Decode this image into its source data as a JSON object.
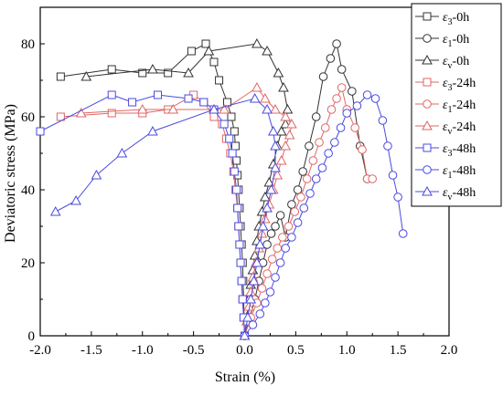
{
  "chart_data": {
    "type": "line",
    "xlabel": "Strain (%)",
    "ylabel": "Deviatoric stress (MPa)",
    "xlim": [
      -2.0,
      2.0
    ],
    "ylim": [
      0,
      90
    ],
    "x_ticks": [
      "-2.0",
      "-1.5",
      "-1.0",
      "-0.5",
      "0.0",
      "0.5",
      "1.0",
      "1.5",
      "2.0"
    ],
    "y_ticks": [
      "0",
      "20",
      "40",
      "60",
      "80"
    ],
    "grid": false,
    "legend_position": "top-right",
    "series": [
      {
        "name_sym": "ε",
        "name_sub": "3",
        "name_suffix": "-0h",
        "color": "#333333",
        "marker": "square",
        "x": [
          0.0,
          -0.005,
          -0.01,
          -0.015,
          -0.02,
          -0.03,
          -0.04,
          -0.05,
          -0.06,
          -0.07,
          -0.08,
          -0.09,
          -0.1,
          -0.13,
          -0.17,
          -0.25,
          -0.3,
          -0.38,
          -0.52,
          -0.75,
          -1.0,
          -1.3,
          -1.8
        ],
        "y": [
          0,
          5,
          10,
          15,
          20,
          25,
          30,
          35,
          40,
          44,
          48,
          52,
          56,
          60,
          64,
          70,
          75,
          80,
          78,
          72,
          72,
          73,
          71
        ]
      },
      {
        "name_sym": "ε",
        "name_sub": "1",
        "name_suffix": "-0h",
        "color": "#333333",
        "marker": "circle",
        "x": [
          0.0,
          0.05,
          0.1,
          0.14,
          0.18,
          0.22,
          0.26,
          0.3,
          0.35,
          0.4,
          0.46,
          0.52,
          0.57,
          0.63,
          0.7,
          0.77,
          0.84,
          0.9,
          0.95,
          1.05,
          1.13,
          1.2
        ],
        "y": [
          0,
          5,
          10,
          15,
          20,
          25,
          28,
          30,
          33,
          27,
          36,
          40,
          45,
          52,
          60,
          71,
          76,
          80,
          73,
          67,
          52,
          43
        ]
      },
      {
        "name_sym": "ε",
        "name_sub": "v",
        "name_suffix": "-0h",
        "color": "#333333",
        "marker": "triangle",
        "x": [
          0.0,
          0.02,
          0.04,
          0.06,
          0.08,
          0.1,
          0.12,
          0.14,
          0.17,
          0.2,
          0.24,
          0.28,
          0.32,
          0.36,
          0.4,
          0.42,
          0.38,
          0.33,
          0.22,
          0.12,
          -0.35,
          -0.55,
          -0.9,
          -1.55
        ],
        "y": [
          0,
          5,
          10,
          14,
          18,
          22,
          26,
          30,
          34,
          38,
          42,
          47,
          52,
          56,
          58,
          62,
          68,
          72,
          78,
          80,
          78,
          72,
          73,
          71
        ]
      },
      {
        "name_sym": "ε",
        "name_sub": "3",
        "name_suffix": "-24h",
        "color": "#e06666",
        "marker": "square",
        "x": [
          0.0,
          -0.01,
          -0.02,
          -0.03,
          -0.04,
          -0.05,
          -0.06,
          -0.07,
          -0.09,
          -0.11,
          -0.14,
          -0.18,
          -0.22,
          -0.3,
          -0.4,
          -0.5,
          -0.75,
          -1.0,
          -1.3,
          -1.8
        ],
        "y": [
          0,
          5,
          10,
          15,
          20,
          25,
          30,
          35,
          40,
          45,
          50,
          54,
          58,
          60,
          64,
          66,
          62,
          61,
          61,
          60
        ]
      },
      {
        "name_sym": "ε",
        "name_sub": "1",
        "name_suffix": "-24h",
        "color": "#e06666",
        "marker": "circle",
        "x": [
          0.0,
          0.06,
          0.12,
          0.17,
          0.22,
          0.27,
          0.32,
          0.37,
          0.43,
          0.49,
          0.55,
          0.61,
          0.67,
          0.73,
          0.79,
          0.85,
          0.9,
          0.95,
          1.0,
          1.08,
          1.15,
          1.2,
          1.25
        ],
        "y": [
          0,
          5,
          9,
          13,
          17,
          21,
          24,
          27,
          30,
          34,
          38,
          43,
          48,
          53,
          57,
          62,
          65,
          68,
          62,
          57,
          51,
          43,
          43
        ]
      },
      {
        "name_sym": "ε",
        "name_sub": "v",
        "name_suffix": "-24h",
        "color": "#e06666",
        "marker": "triangle",
        "x": [
          0.0,
          0.02,
          0.04,
          0.06,
          0.08,
          0.11,
          0.14,
          0.17,
          0.2,
          0.24,
          0.28,
          0.32,
          0.36,
          0.4,
          0.44,
          0.46,
          0.4,
          0.3,
          0.2,
          0.12,
          -0.2,
          -0.7,
          -1.0,
          -1.6
        ],
        "y": [
          0,
          4,
          8,
          12,
          16,
          20,
          24,
          28,
          32,
          36,
          40,
          44,
          48,
          52,
          55,
          58,
          60,
          62,
          65,
          68,
          62,
          62,
          62,
          61
        ]
      },
      {
        "name_sym": "ε",
        "name_sub": "3",
        "name_suffix": "-48h",
        "color": "#4a4ae0",
        "marker": "square",
        "x": [
          0.0,
          -0.01,
          -0.02,
          -0.03,
          -0.04,
          -0.05,
          -0.06,
          -0.07,
          -0.08,
          -0.1,
          -0.12,
          -0.15,
          -0.2,
          -0.3,
          -0.4,
          -0.55,
          -0.85,
          -1.1,
          -1.3,
          -2.0
        ],
        "y": [
          0,
          5,
          10,
          15,
          20,
          25,
          30,
          35,
          40,
          45,
          50,
          54,
          58,
          62,
          64,
          65,
          66,
          64,
          66,
          56
        ]
      },
      {
        "name_sym": "ε",
        "name_sub": "1",
        "name_suffix": "-48h",
        "color": "#4a4ae0",
        "marker": "circle",
        "x": [
          0.0,
          0.08,
          0.15,
          0.2,
          0.25,
          0.3,
          0.35,
          0.4,
          0.46,
          0.52,
          0.58,
          0.64,
          0.7,
          0.76,
          0.82,
          0.88,
          0.94,
          1.0,
          1.1,
          1.2,
          1.28,
          1.35,
          1.4,
          1.45,
          1.5,
          1.55
        ],
        "y": [
          0,
          3,
          6,
          9,
          12,
          16,
          20,
          24,
          27,
          31,
          35,
          39,
          43,
          46,
          50,
          53,
          57,
          61,
          63,
          66,
          65,
          59,
          52,
          44,
          38,
          28
        ]
      },
      {
        "name_sym": "ε",
        "name_sub": "v",
        "name_suffix": "-48h",
        "color": "#4a4ae0",
        "marker": "triangle",
        "x": [
          0.0,
          0.03,
          0.06,
          0.09,
          0.12,
          0.15,
          0.18,
          0.22,
          0.26,
          0.3,
          0.3,
          0.28,
          0.22,
          0.1,
          -0.3,
          -0.9,
          -1.2,
          -1.45,
          -1.65,
          -1.85
        ],
        "y": [
          0,
          5,
          10,
          15,
          20,
          25,
          30,
          35,
          40,
          46,
          52,
          56,
          62,
          65,
          62,
          56,
          50,
          44,
          37,
          34
        ]
      }
    ]
  }
}
